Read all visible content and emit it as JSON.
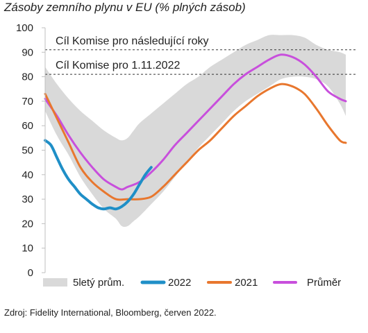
{
  "chart_data": {
    "type": "line",
    "title": "Zásoby zemního plynu v EU (% plných zásob)",
    "xlabel": "",
    "ylabel": "",
    "ylim": [
      0,
      100
    ],
    "yticks": [
      0,
      10,
      20,
      30,
      40,
      50,
      60,
      70,
      80,
      90,
      100
    ],
    "x_unit": "week",
    "xlim": [
      1,
      52
    ],
    "grid": false,
    "legend_position": "bottom",
    "band": {
      "name": "5letý prům.",
      "color": "#d9d9d9",
      "x": [
        1,
        3,
        5,
        7,
        9,
        11,
        13,
        14,
        15,
        16,
        17,
        19,
        21,
        23,
        25,
        27,
        29,
        31,
        33,
        35,
        37,
        39,
        41,
        43,
        45,
        47,
        49,
        51,
        52
      ],
      "low": [
        66,
        56,
        48,
        39,
        32,
        26,
        22,
        19,
        19,
        21,
        23,
        28,
        33,
        39,
        45,
        51,
        56,
        61,
        66,
        70,
        73,
        76,
        79,
        80,
        80,
        79,
        76,
        69,
        64
      ],
      "high": [
        84,
        77,
        71,
        66,
        62,
        58,
        55,
        54,
        55,
        58,
        61,
        65,
        69,
        73,
        77,
        80,
        84,
        87,
        90,
        93,
        95,
        97,
        97,
        97,
        96,
        93,
        91,
        90,
        89
      ]
    },
    "series": [
      {
        "name": "2022",
        "color": "#1f8fc7",
        "width": 4,
        "x": [
          1,
          2,
          3,
          4,
          5,
          6,
          7,
          8,
          9,
          10,
          11,
          12,
          13,
          14,
          15,
          16,
          17,
          18,
          19
        ],
        "values": [
          54,
          52,
          47,
          42,
          38,
          35,
          32,
          30,
          28,
          26.5,
          26,
          26.5,
          26,
          27,
          29,
          32,
          36,
          40,
          43
        ]
      },
      {
        "name": "2021",
        "color": "#e8772e",
        "width": 3,
        "x": [
          1,
          3,
          5,
          7,
          9,
          11,
          13,
          15,
          17,
          19,
          21,
          23,
          25,
          27,
          29,
          31,
          33,
          35,
          37,
          39,
          41,
          43,
          45,
          47,
          49,
          51,
          52
        ],
        "values": [
          73,
          63,
          53,
          43,
          37,
          33,
          30,
          30,
          30,
          31,
          35,
          40,
          45,
          50,
          54,
          59,
          64,
          68,
          72,
          75,
          77,
          76,
          73,
          67,
          60,
          54,
          53
        ]
      },
      {
        "name": "Průměr",
        "color": "#c84fdc",
        "width": 3,
        "x": [
          1,
          3,
          5,
          7,
          9,
          11,
          13,
          14,
          15,
          17,
          19,
          21,
          23,
          25,
          27,
          29,
          31,
          33,
          35,
          37,
          39,
          41,
          43,
          45,
          47,
          49,
          51,
          52
        ],
        "values": [
          71,
          64,
          56,
          49,
          43,
          38,
          35,
          34,
          35,
          37,
          41,
          46,
          52,
          57,
          62,
          67,
          72,
          77,
          81,
          84,
          87,
          89,
          88,
          85,
          80,
          74,
          71,
          70
        ]
      }
    ],
    "reference_lines": [
      {
        "y": 91,
        "label": "Cíl Komise pro následující roky"
      },
      {
        "y": 81,
        "label": "Cíl Komise pro 1.11.2022"
      }
    ],
    "legend": [
      "5letý prům.",
      "2022",
      "2021",
      "Průměr"
    ]
  },
  "source_note": "Zdroj: Fidelity International, Bloomberg, červen 2022."
}
